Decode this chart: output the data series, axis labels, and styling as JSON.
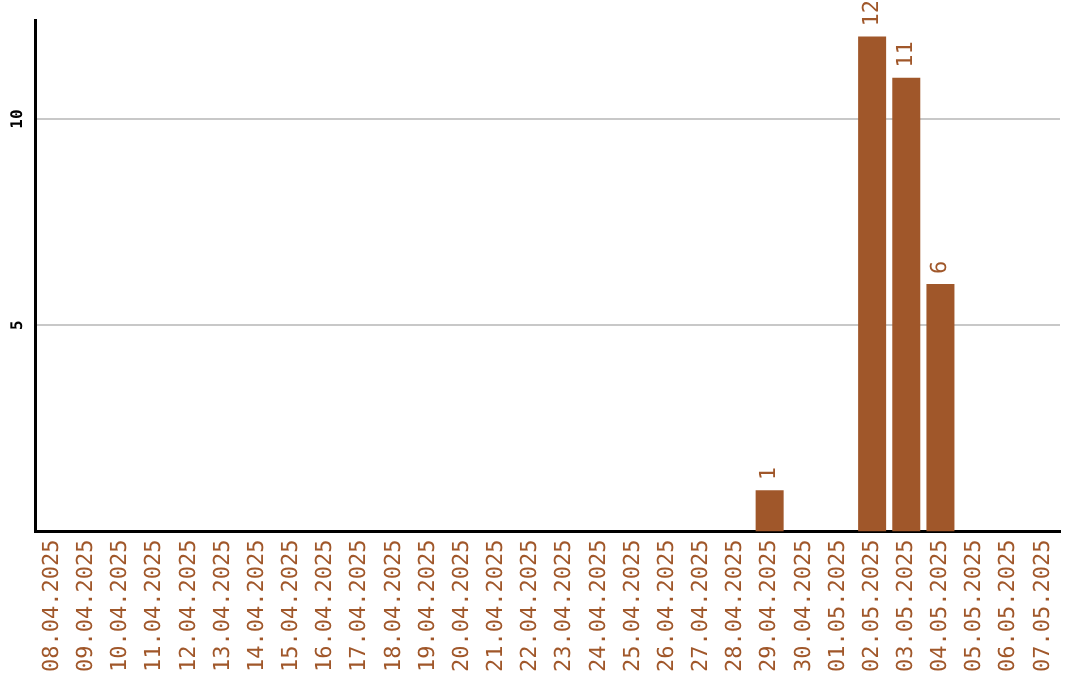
{
  "chart_data": {
    "type": "bar",
    "categories": [
      "08.04.2025",
      "09.04.2025",
      "10.04.2025",
      "11.04.2025",
      "12.04.2025",
      "13.04.2025",
      "14.04.2025",
      "15.04.2025",
      "16.04.2025",
      "17.04.2025",
      "18.04.2025",
      "19.04.2025",
      "20.04.2025",
      "21.04.2025",
      "22.04.2025",
      "23.04.2025",
      "24.04.2025",
      "25.04.2025",
      "26.04.2025",
      "27.04.2025",
      "28.04.2025",
      "29.04.2025",
      "30.04.2025",
      "01.05.2025",
      "02.05.2025",
      "03.05.2025",
      "04.05.2025",
      "05.05.2025",
      "06.05.2025",
      "07.05.2025"
    ],
    "values": [
      0,
      0,
      0,
      0,
      0,
      0,
      0,
      0,
      0,
      0,
      0,
      0,
      0,
      0,
      0,
      0,
      0,
      0,
      0,
      0,
      0,
      1,
      0,
      0,
      12,
      11,
      6,
      0,
      0,
      0
    ],
    "value_labels": [
      null,
      null,
      null,
      null,
      null,
      null,
      null,
      null,
      null,
      null,
      null,
      null,
      null,
      null,
      null,
      null,
      null,
      null,
      null,
      null,
      null,
      "1",
      null,
      null,
      "12",
      "11",
      "6",
      null,
      null,
      null
    ],
    "color": "#a0572a",
    "ylim": [
      0,
      12.4
    ],
    "yticks": [
      5,
      10
    ],
    "grid": "y",
    "legend": false
  }
}
